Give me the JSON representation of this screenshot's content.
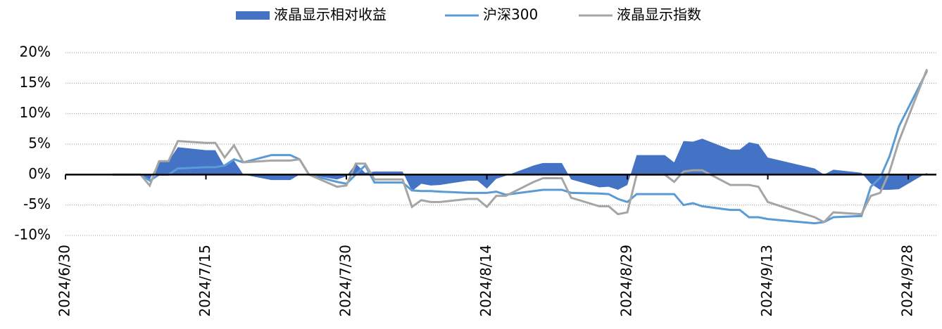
{
  "chart_data": {
    "type": "area-line",
    "x": [
      "2024/7/5",
      "2024/7/8",
      "2024/7/9",
      "2024/7/10",
      "2024/7/11",
      "2024/7/12",
      "2024/7/15",
      "2024/7/16",
      "2024/7/17",
      "2024/7/18",
      "2024/7/19",
      "2024/7/22",
      "2024/7/23",
      "2024/7/24",
      "2024/7/25",
      "2024/7/26",
      "2024/7/29",
      "2024/7/30",
      "2024/7/31",
      "2024/8/1",
      "2024/8/2",
      "2024/8/5",
      "2024/8/6",
      "2024/8/7",
      "2024/8/8",
      "2024/8/9",
      "2024/8/12",
      "2024/8/13",
      "2024/8/14",
      "2024/8/15",
      "2024/8/16",
      "2024/8/19",
      "2024/8/20",
      "2024/8/21",
      "2024/8/22",
      "2024/8/23",
      "2024/8/26",
      "2024/8/27",
      "2024/8/28",
      "2024/8/29",
      "2024/8/30",
      "2024/9/2",
      "2024/9/3",
      "2024/9/4",
      "2024/9/5",
      "2024/9/6",
      "2024/9/9",
      "2024/9/10",
      "2024/9/11",
      "2024/9/12",
      "2024/9/13",
      "2024/9/18",
      "2024/9/19",
      "2024/9/20",
      "2024/9/23",
      "2024/9/24",
      "2024/9/25",
      "2024/9/26",
      "2024/9/27",
      "2024/9/30"
    ],
    "series": [
      {
        "name": "液晶显示相对收益",
        "kind": "area",
        "color": "#4472c4",
        "values": [
          0,
          0,
          -0.8,
          2.2,
          2.2,
          4.5,
          4.0,
          4.0,
          1.3,
          2.3,
          0,
          -0.9,
          -0.9,
          -0.9,
          0,
          0,
          -0.8,
          -0.3,
          1.8,
          0.3,
          0.5,
          0.5,
          -2.7,
          -1.5,
          -1.8,
          -1.7,
          -1.0,
          -1.0,
          -2.3,
          -0.7,
          -0.2,
          1.5,
          1.9,
          1.9,
          1.9,
          -0.8,
          -2.1,
          -2.0,
          -2.5,
          -1.7,
          3.2,
          3.2,
          2.0,
          5.5,
          5.4,
          5.9,
          4.1,
          4.1,
          5.3,
          5.0,
          2.8,
          1.0,
          0,
          0.8,
          0.3,
          -1.5,
          -2.5,
          -2.5,
          -2.4,
          0.3
        ]
      },
      {
        "name": "沪深300",
        "kind": "line",
        "color": "#5b9bd5",
        "values": [
          0,
          0,
          -1,
          0,
          0,
          1,
          1.2,
          1.2,
          1.5,
          2.5,
          2,
          3.2,
          3.2,
          3.2,
          2.5,
          0,
          -1.2,
          -1.5,
          0,
          1.5,
          -1.3,
          -1.3,
          -2.6,
          -2.7,
          -2.7,
          -2.8,
          -3,
          -3,
          -3,
          -2.8,
          -3.3,
          -2.7,
          -2.5,
          -2.5,
          -2.5,
          -3.0,
          -3.1,
          -3.2,
          -4,
          -4.5,
          -3.2,
          -3.2,
          -3.2,
          -5,
          -4.7,
          -5.2,
          -5.8,
          -5.8,
          -7,
          -7,
          -7.3,
          -8,
          -7.8,
          -7,
          -6.8,
          -2,
          -0.5,
          3,
          7.9,
          17
        ]
      },
      {
        "name": "液晶显示指数",
        "kind": "line",
        "color": "#a5a5a5",
        "values": [
          0,
          0,
          -1.8,
          2.2,
          2.2,
          5.5,
          5.2,
          5.2,
          2.8,
          4.8,
          2,
          2.3,
          2.3,
          2.3,
          2.5,
          0,
          -2,
          -1.8,
          1.8,
          1.8,
          -0.8,
          -0.8,
          -5.3,
          -4.2,
          -4.5,
          -4.5,
          -4,
          -4,
          -5.3,
          -3.5,
          -3.5,
          -1.2,
          -0.6,
          -0.6,
          -0.6,
          -3.8,
          -5.2,
          -5.2,
          -6.5,
          -6.2,
          0,
          0,
          -1.2,
          0.5,
          0.7,
          0.7,
          -1.7,
          -1.7,
          -1.7,
          -2,
          -4.5,
          -7,
          -7.8,
          -6.2,
          -6.5,
          -3.5,
          -3,
          0.5,
          5.5,
          17.3
        ]
      }
    ],
    "xlim": [
      "2024/6/30",
      "2024/10/1"
    ],
    "xticks": [
      "2024/6/30",
      "2024/7/15",
      "2024/7/30",
      "2024/8/14",
      "2024/8/29",
      "2024/9/13",
      "2024/9/28"
    ],
    "ylim": [
      -10,
      20
    ],
    "yticks": [
      {
        "value": -10,
        "label": "-10%"
      },
      {
        "value": -5,
        "label": "-5%"
      },
      {
        "value": 0,
        "label": "0%"
      },
      {
        "value": 5,
        "label": "5%"
      },
      {
        "value": 10,
        "label": "10%"
      },
      {
        "value": 15,
        "label": "15%"
      },
      {
        "value": 20,
        "label": "20%"
      }
    ],
    "grid": true,
    "legend": "top"
  }
}
